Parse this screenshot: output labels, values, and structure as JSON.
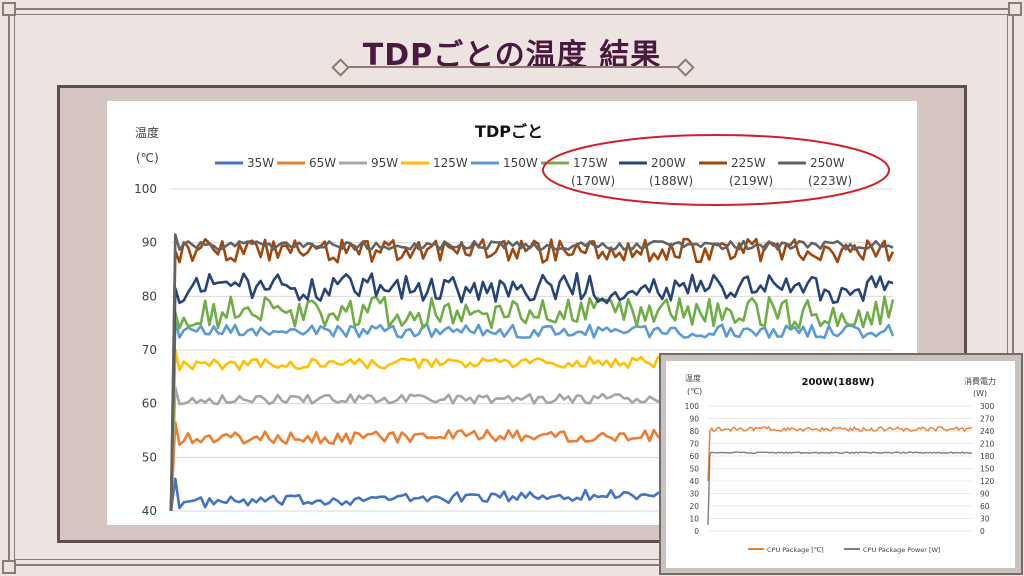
{
  "slide": {
    "title": "TDPごとの温度 結果"
  },
  "colors": {
    "background": "#ede4e1",
    "title": "#4a1a3e",
    "highlight": "#d0202a"
  },
  "chart_data": [
    {
      "type": "line",
      "title": "TDPごと",
      "ylabel": "温度 (℃)",
      "ylabel_lines": [
        "温度",
        "(℃)"
      ],
      "xlabel": "",
      "ylim": [
        40,
        100
      ],
      "yticks": [
        40,
        50,
        60,
        70,
        80,
        90,
        100
      ],
      "grid": true,
      "legend_position": "top",
      "highlighted_legend_entries": [
        "175W",
        "200W",
        "225W",
        "250W"
      ],
      "series": [
        {
          "name": "35W",
          "color": "#4472c4",
          "level": 44,
          "noise": 1.0,
          "trend": 2.5
        },
        {
          "name": "65W",
          "color": "#ed7d31",
          "level": 54.5,
          "noise": 1.2,
          "trend": 1.0
        },
        {
          "name": "95W",
          "color": "#a5a5a5",
          "level": 61,
          "noise": 0.9,
          "trend": 0.2
        },
        {
          "name": "125W",
          "color": "#ffc000",
          "level": 68,
          "noise": 1.0,
          "trend": 0.8
        },
        {
          "name": "150W",
          "color": "#5b9bd5",
          "level": 73.5,
          "noise": 1.2,
          "trend": 0
        },
        {
          "name": "175W",
          "sub": "(170W)",
          "color": "#70ad47",
          "level": 77,
          "noise": 3.0,
          "trend": 0
        },
        {
          "name": "200W",
          "sub": "(188W)",
          "color": "#264478",
          "level": 81.5,
          "noise": 2.8,
          "trend": 0
        },
        {
          "name": "225W",
          "sub": "(219W)",
          "color": "#9e480e",
          "level": 88.5,
          "noise": 2.2,
          "trend": 0
        },
        {
          "name": "250W",
          "sub": "(223W)",
          "color": "#636363",
          "level": 89.5,
          "noise": 0.8,
          "trend": 0
        }
      ]
    },
    {
      "type": "line",
      "title": "200W(188W)",
      "ylabel_left": "温度 (℃)",
      "ylabel_left_lines": [
        "温度",
        "(℃)"
      ],
      "ylabel_right": "消費電力 (W)",
      "ylabel_right_lines": [
        "消費電力",
        "(W)"
      ],
      "ylim_left": [
        0,
        100
      ],
      "ylim_right": [
        0,
        300
      ],
      "yticks_left": [
        0,
        10,
        20,
        30,
        40,
        50,
        60,
        70,
        80,
        90,
        100
      ],
      "yticks_right": [
        0,
        30,
        60,
        90,
        120,
        150,
        180,
        210,
        240,
        270,
        300
      ],
      "grid": true,
      "legend_position": "bottom",
      "series": [
        {
          "name": "CPU Package [℃]",
          "color": "#ed7d31",
          "axis": "left",
          "level": 81.5,
          "noise": 1.8
        },
        {
          "name": "CPU Package Power [W]",
          "color": "#7f7f7f",
          "axis": "right",
          "level": 188,
          "noise": 1.5
        }
      ]
    }
  ]
}
